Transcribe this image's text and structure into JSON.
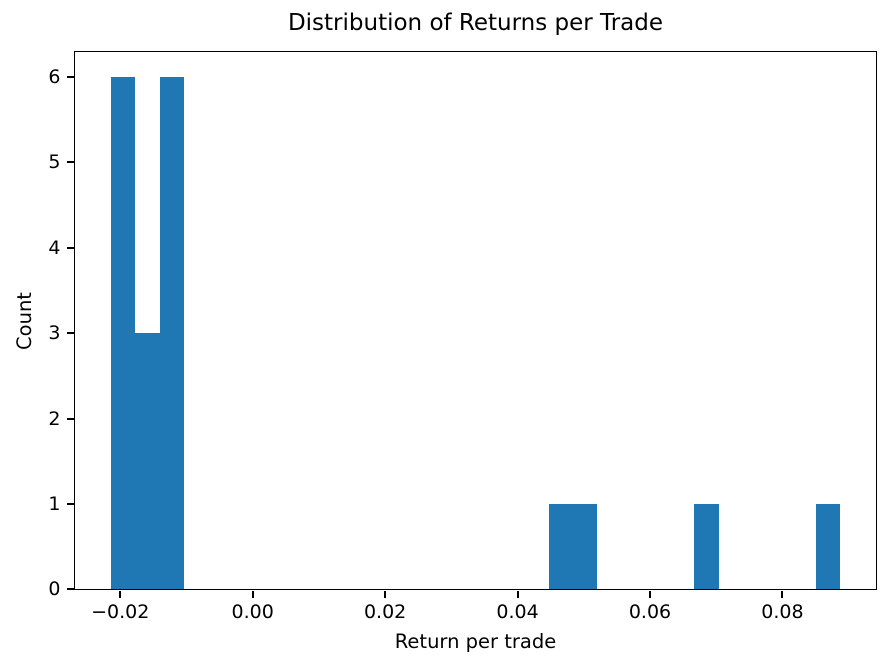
{
  "figure": {
    "background_color": "#ffffff",
    "axis_color": "#000000",
    "text_color": "#000000"
  },
  "chart_data": {
    "type": "bar",
    "subtype": "histogram",
    "title": "Distribution of Returns per Trade",
    "xlabel": "Return per trade",
    "ylabel": "Count",
    "bar_color": "#1f77b4",
    "n_bins": 30,
    "bin_edges": [
      -0.0214,
      -0.01773,
      -0.01406,
      -0.01039,
      -0.00672,
      -0.00305,
      0.00063,
      0.0043,
      0.00797,
      0.01164,
      0.01531,
      0.01898,
      0.02265,
      0.02632,
      0.02999,
      0.03367,
      0.03734,
      0.04101,
      0.04468,
      0.04835,
      0.05202,
      0.05569,
      0.05937,
      0.06304,
      0.06671,
      0.07038,
      0.07405,
      0.07772,
      0.08139,
      0.08506,
      0.08873
    ],
    "counts": [
      6,
      3,
      6,
      0,
      0,
      0,
      0,
      0,
      0,
      0,
      0,
      0,
      0,
      0,
      0,
      0,
      0,
      0,
      1,
      1,
      0,
      0,
      0,
      0,
      1,
      0,
      0,
      0,
      0,
      1
    ],
    "total_count": 19,
    "xlim": [
      -0.0269,
      0.0942
    ],
    "ylim": [
      0,
      6.3
    ],
    "x_ticks": {
      "values": [
        -0.02,
        0.0,
        0.02,
        0.04,
        0.06,
        0.08
      ],
      "labels": [
        "−0.02",
        "0.00",
        "0.02",
        "0.04",
        "0.06",
        "0.08"
      ]
    },
    "y_ticks": {
      "values": [
        0,
        1,
        2,
        3,
        4,
        5,
        6
      ],
      "labels": [
        "0",
        "1",
        "2",
        "3",
        "4",
        "5",
        "6"
      ]
    },
    "grid": false,
    "legend": null
  }
}
